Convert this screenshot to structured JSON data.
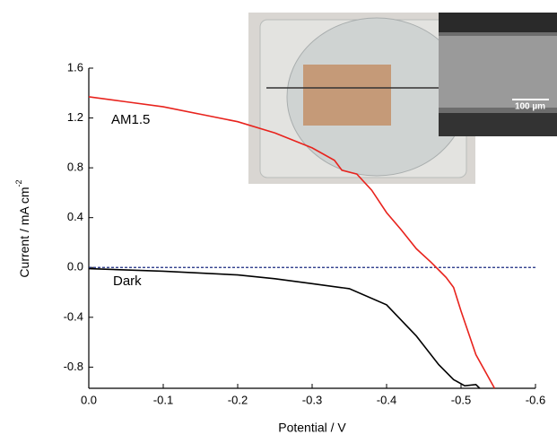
{
  "chart_data": {
    "type": "line",
    "x_label": "Potential / V",
    "y_label": "Current / mA cm",
    "y_label_sup": "-2",
    "xlim": [
      0,
      -0.6
    ],
    "xticks": [
      {
        "value": 0,
        "label": "0.0"
      },
      -0.1,
      -0.2,
      -0.3,
      -0.4,
      -0.5,
      -0.6
    ],
    "ylim": [
      -0.97,
      1.6
    ],
    "yticks": [
      1.6,
      1.2,
      0.8,
      0.4,
      {
        "value": 0,
        "label": "0.0"
      },
      -0.4,
      -0.8
    ],
    "reference_line": {
      "value": 0,
      "color": "#1a2a80"
    },
    "series": [
      {
        "name": "AM1.5",
        "color": "#e8231d",
        "x": [
          0,
          -0.05,
          -0.1,
          -0.15,
          -0.2,
          -0.25,
          -0.3,
          -0.33,
          -0.34,
          -0.36,
          -0.38,
          -0.4,
          -0.42,
          -0.44,
          -0.46,
          -0.47,
          -0.48,
          -0.49,
          -0.5,
          -0.52,
          -0.545
        ],
        "values": [
          1.37,
          1.33,
          1.29,
          1.23,
          1.17,
          1.08,
          0.96,
          0.86,
          0.78,
          0.75,
          0.62,
          0.44,
          0.3,
          0.15,
          0.04,
          -0.02,
          -0.08,
          -0.16,
          -0.35,
          -0.7,
          -0.97
        ]
      },
      {
        "name": "Dark",
        "color": "#000000",
        "x": [
          0,
          -0.1,
          -0.2,
          -0.25,
          -0.3,
          -0.35,
          -0.4,
          -0.44,
          -0.47,
          -0.49,
          -0.505,
          -0.52,
          -0.525
        ],
        "values": [
          -0.01,
          -0.03,
          -0.06,
          -0.09,
          -0.13,
          -0.17,
          -0.3,
          -0.55,
          -0.78,
          -0.9,
          -0.95,
          -0.94,
          -0.97
        ]
      }
    ],
    "inset_scale_label": "100 µm"
  }
}
